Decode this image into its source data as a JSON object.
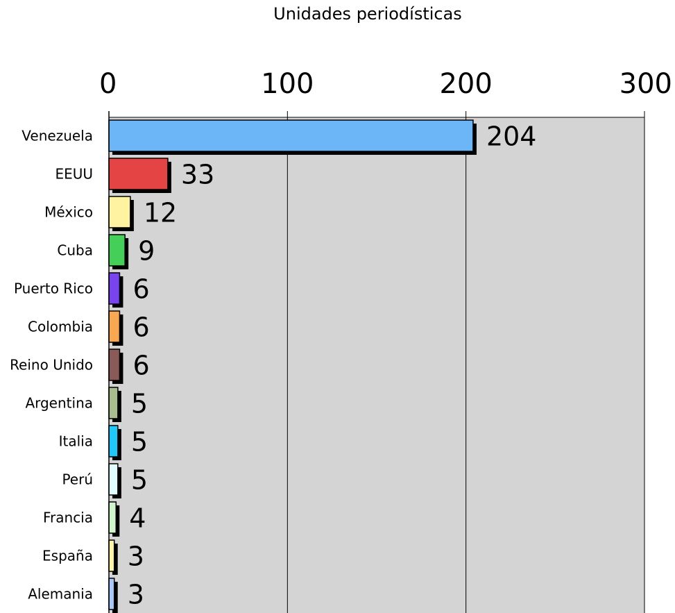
{
  "chart_data": {
    "type": "bar",
    "orientation": "horizontal",
    "title": "Unidades periodísticas",
    "xlim": [
      0,
      300
    ],
    "x_ticks": [
      "0",
      "100",
      "200",
      "300"
    ],
    "grid": true,
    "categories": [
      "Venezuela",
      "EEUU",
      "México",
      "Cuba",
      "Puerto Rico",
      "Colombia",
      "Reino Unido",
      "Argentina",
      "Italia",
      "Perú",
      "Francia",
      "España",
      "Alemania"
    ],
    "values": [
      204,
      33,
      12,
      9,
      6,
      6,
      6,
      5,
      5,
      5,
      4,
      3,
      3
    ],
    "value_labels": [
      "204",
      "33",
      "12",
      "9",
      "6",
      "6",
      "6",
      "5",
      "5",
      "5",
      "4",
      "3",
      "3"
    ],
    "colors": [
      "#6cb6f8",
      "#e44444",
      "#fff2a0",
      "#44d058",
      "#7744f0",
      "#f8a850",
      "#8a5a58",
      "#a8bc90",
      "#1ec8f8",
      "#e0fcfc",
      "#d0f4cc",
      "#fcf4a8",
      "#a8c8f8"
    ]
  }
}
